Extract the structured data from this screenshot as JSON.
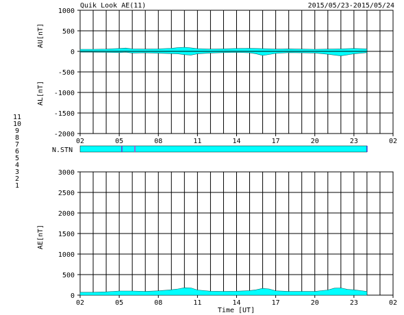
{
  "header": {
    "title": "Quik Look AE(11)",
    "date_range": "2015/05/23-2015/05/24"
  },
  "station_legend": [
    {
      "label": "11",
      "color": "#33cccc"
    },
    {
      "label": "10",
      "color": "#cc33cc"
    },
    {
      "label": "9",
      "color": "#3333cc"
    },
    {
      "label": "8",
      "color": "#dddd66"
    },
    {
      "label": "7",
      "color": "#66cc66"
    },
    {
      "label": "6",
      "color": "#ff3333"
    },
    {
      "label": "5",
      "color": "#cccccc"
    },
    {
      "label": "4",
      "color": "#999999"
    },
    {
      "label": "3",
      "color": "#66aaaa"
    },
    {
      "label": "2",
      "color": "#cc33cc"
    },
    {
      "label": "1",
      "color": "#3333cc"
    }
  ],
  "nstn": {
    "label": "N.STN",
    "bar_color": "#00ffff",
    "markers": [
      {
        "hour": 5.2,
        "color": "#6633cc"
      },
      {
        "hour": 6.2,
        "color": "#cc33cc"
      },
      {
        "hour": 24.0,
        "color": "#3333cc"
      }
    ]
  },
  "chart_data": [
    {
      "type": "area",
      "panel": "AU/AL",
      "ylabel_top": "AU[nT]",
      "ylabel_bottom": "AL[nT]",
      "ylim": [
        -2000,
        1000
      ],
      "yticks": [
        -2000,
        -1500,
        -1000,
        -500,
        0,
        500,
        1000
      ],
      "ytick_labels": [
        "-2000",
        "-1500",
        "-1000",
        "-500",
        "0",
        "500",
        "1000"
      ],
      "xlim": [
        2,
        26
      ],
      "xtick_labels": [
        "02",
        "05",
        "08",
        "11",
        "14",
        "17",
        "20",
        "23",
        "02"
      ],
      "fill_color": "#00ffff",
      "grid": true,
      "series": [
        {
          "name": "AU",
          "x": [
            2,
            3,
            4,
            5,
            5.5,
            6,
            7,
            8,
            9,
            9.5,
            10,
            10.5,
            11,
            12,
            13,
            14,
            15,
            15.5,
            16,
            17,
            18,
            19,
            20,
            21,
            22,
            23,
            24
          ],
          "values": [
            50,
            50,
            55,
            70,
            80,
            60,
            55,
            60,
            75,
            90,
            100,
            85,
            65,
            55,
            60,
            70,
            75,
            70,
            65,
            55,
            60,
            55,
            50,
            55,
            60,
            70,
            60
          ]
        },
        {
          "name": "AL",
          "x": [
            2,
            3,
            4,
            5,
            5.5,
            6,
            7,
            8,
            9,
            9.5,
            10,
            10.5,
            11,
            12,
            13,
            14,
            15,
            15.5,
            16,
            17,
            18,
            19,
            20,
            21,
            22,
            23,
            24
          ],
          "values": [
            -20,
            -20,
            -25,
            -30,
            -20,
            -40,
            -35,
            -45,
            -55,
            -60,
            -80,
            -90,
            -60,
            -40,
            -30,
            -25,
            -35,
            -60,
            -100,
            -50,
            -30,
            -35,
            -40,
            -70,
            -110,
            -60,
            -30
          ]
        }
      ]
    },
    {
      "type": "area",
      "panel": "AE",
      "xlabel": "Time [UT]",
      "ylabel": "AE[nT]",
      "ylim": [
        0,
        3000
      ],
      "yticks": [
        0,
        500,
        1000,
        1500,
        2000,
        2500,
        3000
      ],
      "ytick_labels": [
        "0",
        "500",
        "1000",
        "1500",
        "2000",
        "2500",
        "3000"
      ],
      "xlim": [
        2,
        26
      ],
      "xtick_labels": [
        "02",
        "05",
        "08",
        "11",
        "14",
        "17",
        "20",
        "23",
        "02"
      ],
      "fill_color": "#00ffff",
      "grid": true,
      "series": [
        {
          "name": "AE",
          "x": [
            2,
            3,
            4,
            5,
            5.5,
            6,
            7,
            8,
            9,
            9.5,
            10,
            10.5,
            11,
            12,
            13,
            14,
            15,
            15.5,
            16,
            16.5,
            17,
            18,
            19,
            20,
            21,
            21.5,
            22,
            22.5,
            23,
            24
          ],
          "values": [
            70,
            70,
            80,
            100,
            100,
            100,
            90,
            105,
            130,
            150,
            180,
            175,
            125,
            95,
            90,
            95,
            110,
            130,
            165,
            150,
            105,
            90,
            90,
            90,
            125,
            170,
            175,
            140,
            130,
            90
          ]
        }
      ]
    }
  ]
}
